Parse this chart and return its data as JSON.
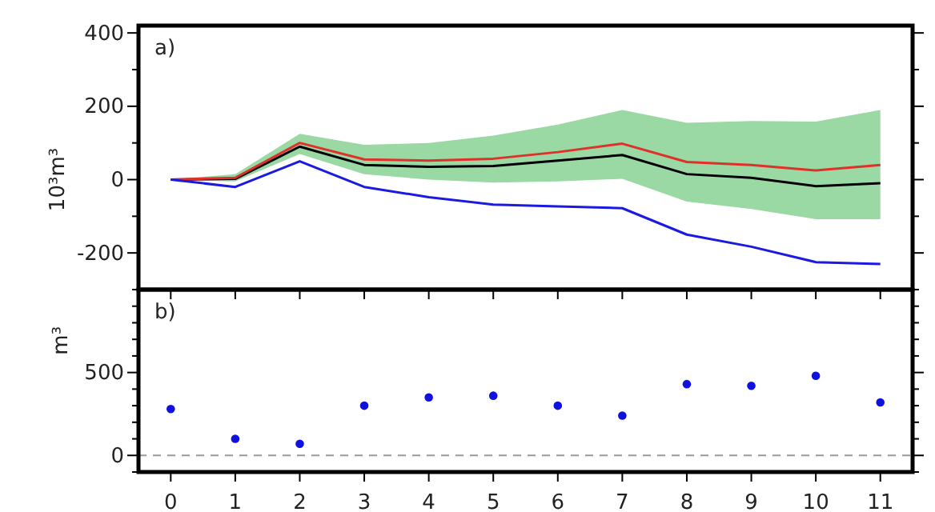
{
  "chart_data": [
    {
      "type": "line",
      "ylabel": "10³m³",
      "annotations": [
        "a)"
      ],
      "x": [
        0,
        1,
        2,
        3,
        4,
        5,
        6,
        7,
        8,
        9,
        10,
        11
      ],
      "xlim": [
        -0.5,
        11.5
      ],
      "xticks": [
        0,
        1,
        2,
        3,
        4,
        5,
        6,
        7,
        8,
        9,
        10,
        11
      ],
      "ylim": [
        -300,
        420
      ],
      "yticks": [
        {
          "value": -300,
          "label": null
        },
        -200,
        {
          "value": -100,
          "label": null
        },
        0,
        {
          "value": 100,
          "label": null
        },
        200,
        {
          "value": 300,
          "label": null
        },
        400
      ],
      "tick_labels": "y",
      "grid": false,
      "marker": "none",
      "line_style": "solid",
      "series": [
        {
          "color": "#000000",
          "values": [
            0,
            2,
            90,
            40,
            35,
            37,
            52,
            67,
            15,
            5,
            -18,
            -10
          ],
          "lower": [
            0,
            -5,
            70,
            15,
            0,
            -8,
            -5,
            2,
            -60,
            -80,
            -108,
            -108
          ],
          "upper": [
            0,
            15,
            125,
            95,
            100,
            120,
            150,
            190,
            155,
            160,
            158,
            190
          ]
        },
        {
          "color": "#e0302a",
          "values": [
            0,
            5,
            100,
            55,
            52,
            57,
            75,
            98,
            48,
            40,
            25,
            40
          ]
        },
        {
          "color": "#1a1ae0",
          "values": [
            0,
            -20,
            50,
            -20,
            -48,
            -68,
            -73,
            -78,
            -150,
            -183,
            -225,
            -230
          ]
        }
      ]
    },
    {
      "type": "scatter",
      "ylabel": "m³",
      "annotations": [
        "b)"
      ],
      "x": [
        0,
        1,
        2,
        3,
        4,
        5,
        6,
        7,
        8,
        9,
        10,
        11
      ],
      "xlim": [
        -0.5,
        11.5
      ],
      "xticks": [
        0,
        1,
        2,
        3,
        4,
        5,
        6,
        7,
        8,
        9,
        10,
        11
      ],
      "ylim": [
        -100,
        1000
      ],
      "yticks": [
        {
          "value": -100,
          "label": null
        },
        0,
        {
          "value": 100,
          "label": null
        },
        {
          "value": 200,
          "label": null
        },
        {
          "value": 300,
          "label": null
        },
        {
          "value": 400,
          "label": null
        },
        500,
        {
          "value": 600,
          "label": null
        },
        {
          "value": 700,
          "label": null
        },
        {
          "value": 800,
          "label": null
        },
        {
          "value": 900,
          "label": null
        }
      ],
      "grid": false,
      "marker": "circle",
      "series": [
        {
          "color": "#1010e0",
          "values": [
            280,
            100,
            70,
            300,
            350,
            360,
            300,
            240,
            430,
            420,
            480,
            320
          ]
        }
      ],
      "ref_lines": [
        {
          "axis": "y",
          "value": 0,
          "color": "#999999",
          "line_style": "dashed"
        }
      ]
    }
  ]
}
